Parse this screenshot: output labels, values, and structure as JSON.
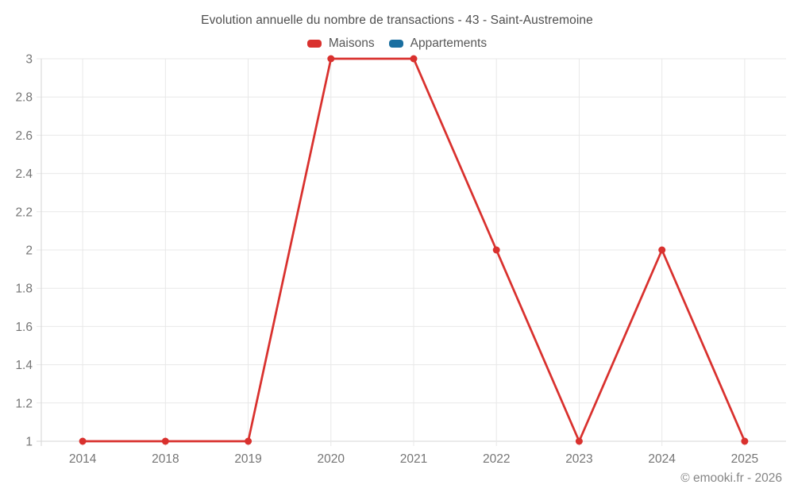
{
  "watermark": {
    "text": "© emooki.fr - 2026"
  },
  "chart_data": {
    "type": "line",
    "title": "Evolution annuelle du nombre de transactions - 43 - Saint-Austremoine",
    "categories": [
      "2014",
      "2018",
      "2019",
      "2020",
      "2021",
      "2022",
      "2023",
      "2024",
      "2025"
    ],
    "series": [
      {
        "name": "Maisons",
        "color": "#d9312e",
        "values": [
          1,
          1,
          1,
          3,
          3,
          2,
          1,
          2,
          1
        ]
      },
      {
        "name": "Appartements",
        "color": "#1a6fa0",
        "values": [
          null,
          null,
          null,
          null,
          null,
          null,
          null,
          null,
          null
        ]
      }
    ],
    "xlabel": "",
    "ylabel": "",
    "ylim": [
      1,
      3
    ],
    "yticks": [
      1,
      1.2,
      1.4,
      1.6,
      1.8,
      2,
      2.2,
      2.4,
      2.6,
      2.8,
      3
    ],
    "grid": true,
    "legend_position": "top",
    "colors": {
      "grid_line": "#e8e8e8",
      "axis_line": "#d6d6d6",
      "tick_label": "#757575",
      "title_text": "#4e4e4e",
      "legend_text": "#575757",
      "watermark_text": "#858585",
      "background": "#ffffff"
    }
  }
}
